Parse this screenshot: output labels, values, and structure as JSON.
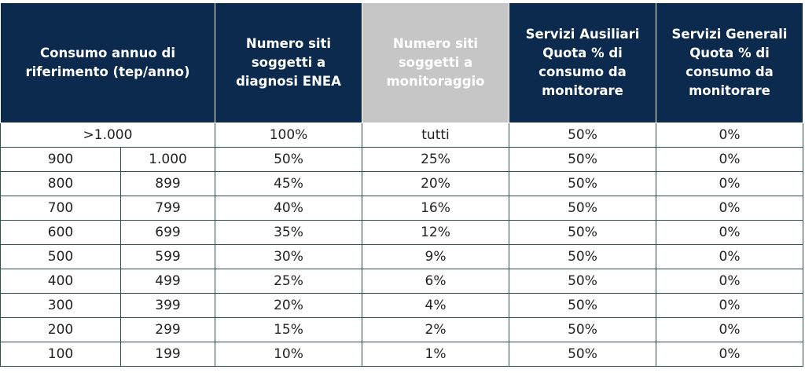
{
  "headers": [
    "Consumo annuo di riferimento (tep/anno)",
    "Numero siti soggetti a diagnosi ENEA",
    "Numero siti soggetti a monitoraggio",
    "Servizi Ausiliari Quota % di consumo da monitorare",
    "Servizi Generali Quota % di consumo da monitorare"
  ],
  "first_row": [
    ">1.000",
    "100%",
    "tutti",
    "50%",
    "0%"
  ],
  "rows": [
    [
      "900",
      "1.000",
      "50%",
      "25%",
      "50%",
      "0%"
    ],
    [
      "800",
      "899",
      "45%",
      "20%",
      "50%",
      "0%"
    ],
    [
      "700",
      "799",
      "40%",
      "16%",
      "50%",
      "0%"
    ],
    [
      "600",
      "699",
      "35%",
      "12%",
      "50%",
      "0%"
    ],
    [
      "500",
      "599",
      "30%",
      "9%",
      "50%",
      "0%"
    ],
    [
      "400",
      "499",
      "25%",
      "6%",
      "50%",
      "0%"
    ],
    [
      "300",
      "399",
      "20%",
      "4%",
      "50%",
      "0%"
    ],
    [
      "200",
      "299",
      "15%",
      "2%",
      "50%",
      "0%"
    ],
    [
      "100",
      "199",
      "10%",
      "1%",
      "50%",
      "0%"
    ]
  ],
  "colors": {
    "header_bg": "#0b2a4d",
    "header_highlight_bg": "#c6c6c6",
    "header_text": "#ffffff",
    "grid": "#2f4f4f"
  }
}
